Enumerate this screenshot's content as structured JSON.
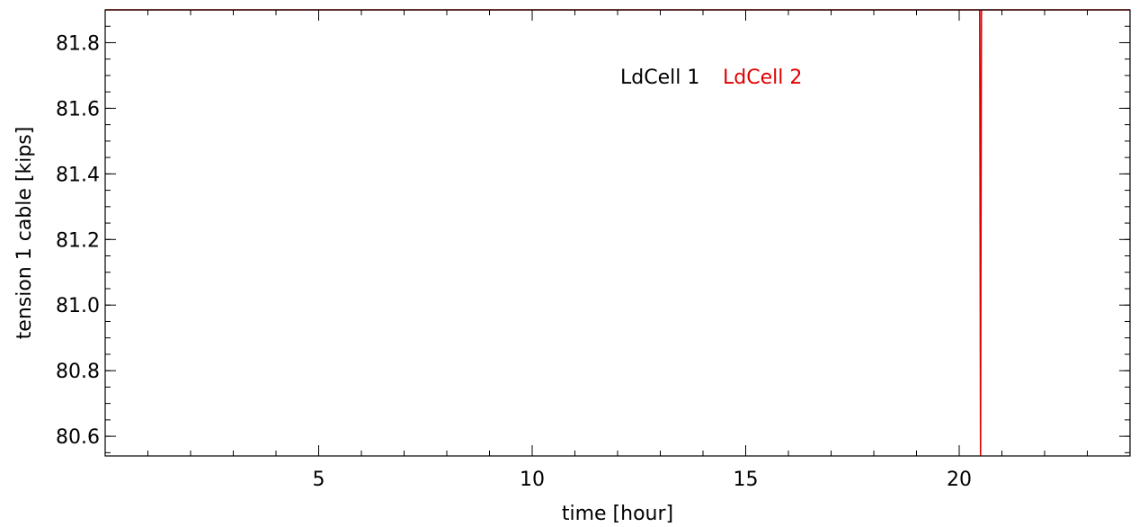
{
  "chart_data": {
    "type": "line",
    "xlabel": "time [hour]",
    "ylabel": "tension 1 cable [kips]",
    "xlim": [
      0,
      24
    ],
    "ylim": [
      80.54,
      81.9
    ],
    "x_major_ticks": [
      5,
      10,
      15,
      20
    ],
    "x_tick_labels": [
      "5",
      "10",
      "15",
      "20"
    ],
    "x_minor_step": 1,
    "y_major_ticks": [
      80.6,
      80.8,
      81.0,
      81.2,
      81.4,
      81.6,
      81.8
    ],
    "y_tick_labels": [
      "80.6",
      "80.8",
      "81.0",
      "81.2",
      "81.4",
      "81.6",
      "81.8"
    ],
    "y_minor_step": 0.05,
    "grid": false,
    "legend_placement": "top-center",
    "series": [
      {
        "name": "LdCell 1",
        "color": "#000000",
        "x": [],
        "y": []
      },
      {
        "name": "LdCell 2",
        "color": "#e00000",
        "x": [
          0,
          20.48,
          20.5,
          20.52,
          24
        ],
        "y": [
          81.9,
          81.9,
          80.54,
          81.9,
          81.9
        ]
      }
    ]
  }
}
